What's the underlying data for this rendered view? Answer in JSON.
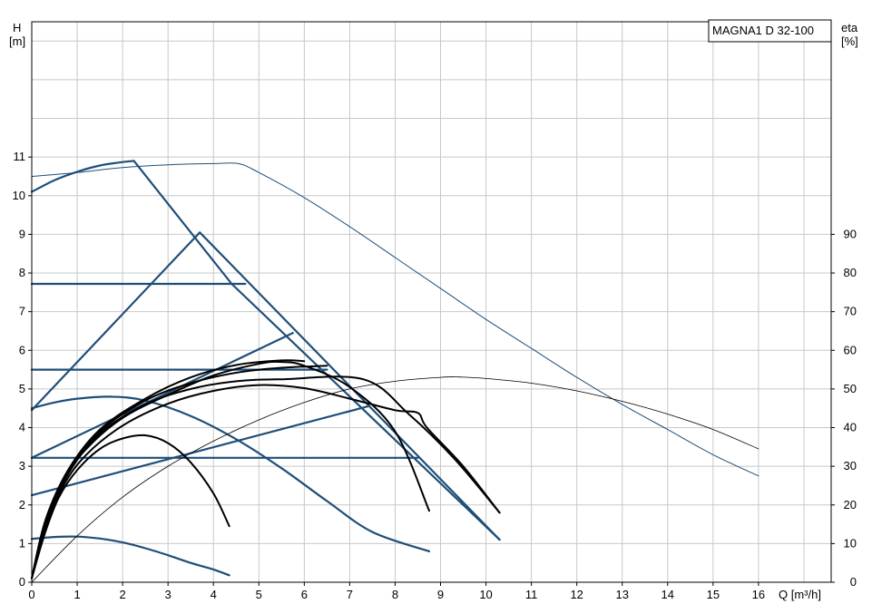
{
  "chart_data": {
    "type": "line",
    "title": "MAGNA1 D 32-100",
    "xlabel": "Q [m³/h]",
    "ylabel_unit": "[m]",
    "ylabel": "H",
    "y2label": "eta",
    "y2label_unit": "[%]",
    "xlim": [
      0,
      17.6
    ],
    "ylim": [
      0,
      14.5
    ],
    "y2lim": [
      0,
      145
    ],
    "x_ticks": [
      0,
      1,
      2,
      3,
      4,
      5,
      6,
      7,
      8,
      9,
      10,
      11,
      12,
      13,
      14,
      15,
      16
    ],
    "y_ticks": [
      0,
      1,
      2,
      3,
      4,
      5,
      6,
      7,
      8,
      9,
      10,
      11
    ],
    "y2_ticks": [
      0,
      10,
      20,
      30,
      40,
      50,
      60,
      70,
      80,
      90
    ],
    "grid": true,
    "colors": {
      "blue": "#1f4e79",
      "black": "#000000",
      "grid": "#c8c8c8"
    },
    "series": [
      {
        "color": "#1f4e79",
        "width": 2.2,
        "points": [
          [
            0,
            10.1
          ],
          [
            0.5,
            10.4
          ],
          [
            1,
            10.62
          ],
          [
            1.5,
            10.78
          ],
          [
            2,
            10.87
          ],
          [
            2.25,
            10.9
          ],
          [
            4.4,
            7.72
          ],
          [
            10.3,
            1.1
          ]
        ]
      },
      {
        "color": "#1f4e79",
        "width": 2.2,
        "points": [
          [
            0,
            7.72
          ],
          [
            4.7,
            7.72
          ]
        ]
      },
      {
        "color": "#1f4e79",
        "width": 2.2,
        "points": [
          [
            0,
            4.45
          ],
          [
            3.7,
            9.05
          ],
          [
            10.3,
            1.1
          ]
        ]
      },
      {
        "color": "#1f4e79",
        "width": 2.2,
        "points": [
          [
            0,
            5.5
          ],
          [
            6.5,
            5.5
          ]
        ]
      },
      {
        "color": "#1f4e79",
        "width": 2.2,
        "points": [
          [
            0,
            3.22
          ],
          [
            5.75,
            6.45
          ]
        ]
      },
      {
        "color": "#1f4e79",
        "width": 2.2,
        "points": [
          [
            0,
            3.22
          ],
          [
            8.5,
            3.22
          ]
        ]
      },
      {
        "color": "#1f4e79",
        "width": 2.2,
        "points": [
          [
            0,
            2.25
          ],
          [
            7.4,
            4.55
          ]
        ]
      },
      {
        "color": "#1f4e79",
        "width": 2.2,
        "points": [
          [
            0,
            4.5
          ],
          [
            0.5,
            4.65
          ],
          [
            1,
            4.75
          ],
          [
            1.75,
            4.8
          ],
          [
            2.5,
            4.7
          ],
          [
            3.5,
            4.3
          ],
          [
            4.5,
            3.7
          ],
          [
            5.5,
            2.95
          ],
          [
            6.5,
            2.1
          ],
          [
            7.5,
            1.3
          ],
          [
            8.75,
            0.8
          ]
        ]
      },
      {
        "color": "#1f4e79",
        "width": 2.2,
        "points": [
          [
            0,
            1.12
          ],
          [
            0.5,
            1.17
          ],
          [
            1,
            1.18
          ],
          [
            1.5,
            1.13
          ],
          [
            2,
            1.03
          ],
          [
            2.5,
            0.88
          ],
          [
            3,
            0.7
          ],
          [
            3.5,
            0.5
          ],
          [
            4,
            0.33
          ],
          [
            4.35,
            0.18
          ]
        ]
      },
      {
        "color": "#000000",
        "width": 2.0,
        "points": [
          [
            0,
            0.1
          ],
          [
            0.3,
            1.3
          ],
          [
            0.6,
            2.2
          ],
          [
            1,
            2.9
          ],
          [
            1.5,
            3.45
          ],
          [
            2,
            3.72
          ],
          [
            2.5,
            3.8
          ],
          [
            3,
            3.6
          ],
          [
            3.5,
            3.1
          ],
          [
            4,
            2.3
          ],
          [
            4.35,
            1.45
          ]
        ]
      },
      {
        "color": "#000000",
        "width": 2.0,
        "points": [
          [
            0,
            0.1
          ],
          [
            0.3,
            1.4
          ],
          [
            0.7,
            2.5
          ],
          [
            1.2,
            3.3
          ],
          [
            2,
            4.05
          ],
          [
            3,
            4.62
          ],
          [
            4,
            4.95
          ],
          [
            5,
            5.1
          ],
          [
            6,
            5.02
          ],
          [
            7,
            4.75
          ],
          [
            8,
            4.45
          ],
          [
            8.5,
            4.38
          ],
          [
            8.7,
            4.0
          ],
          [
            9.5,
            3.0
          ],
          [
            10.3,
            1.8
          ]
        ]
      },
      {
        "color": "#000000",
        "width": 2.0,
        "points": [
          [
            0,
            0.1
          ],
          [
            0.3,
            1.5
          ],
          [
            0.7,
            2.65
          ],
          [
            1.2,
            3.45
          ],
          [
            2,
            4.25
          ],
          [
            3,
            4.85
          ],
          [
            4,
            5.35
          ],
          [
            5,
            5.65
          ],
          [
            5.5,
            5.7
          ],
          [
            6,
            5.6
          ],
          [
            7,
            5.05
          ],
          [
            8,
            3.9
          ],
          [
            8.75,
            1.85
          ]
        ]
      },
      {
        "color": "#000000",
        "width": 2.0,
        "points": [
          [
            0,
            0.1
          ],
          [
            0.3,
            1.5
          ],
          [
            0.8,
            2.8
          ],
          [
            1.5,
            3.85
          ],
          [
            2.5,
            4.6
          ],
          [
            3.5,
            5.0
          ],
          [
            4.5,
            5.2
          ],
          [
            5.5,
            5.25
          ],
          [
            7.3,
            5.25
          ],
          [
            8.3,
            4.35
          ],
          [
            9.3,
            3.2
          ],
          [
            10.3,
            1.8
          ]
        ]
      },
      {
        "color": "#000000",
        "width": 2.0,
        "points": [
          [
            0,
            0.1
          ],
          [
            0.3,
            1.55
          ],
          [
            0.8,
            2.85
          ],
          [
            1.5,
            3.9
          ],
          [
            2.5,
            4.7
          ],
          [
            3.5,
            5.15
          ],
          [
            4.5,
            5.42
          ],
          [
            5.5,
            5.55
          ],
          [
            6.5,
            5.6
          ]
        ]
      },
      {
        "color": "#000000",
        "width": 2.0,
        "points": [
          [
            0,
            0.1
          ],
          [
            0.3,
            1.6
          ],
          [
            0.8,
            2.9
          ],
          [
            1.5,
            3.95
          ],
          [
            2.5,
            4.75
          ],
          [
            3.5,
            5.3
          ],
          [
            4.5,
            5.62
          ],
          [
            5.5,
            5.74
          ],
          [
            6,
            5.72
          ]
        ]
      },
      {
        "color": "#1f4e79",
        "width": 1.0,
        "axis": "right",
        "points": [
          [
            0,
            105
          ],
          [
            1,
            106
          ],
          [
            2,
            107.3
          ],
          [
            3,
            108
          ],
          [
            4,
            108.3
          ],
          [
            4.55,
            108.3
          ],
          [
            5,
            106
          ],
          [
            6,
            99.5
          ],
          [
            7,
            92
          ],
          [
            8,
            84
          ],
          [
            9,
            76
          ],
          [
            10,
            68
          ],
          [
            11,
            60.5
          ],
          [
            12,
            53
          ],
          [
            13,
            46
          ],
          [
            14,
            39.5
          ],
          [
            15,
            33
          ],
          [
            16,
            27.5
          ]
        ]
      },
      {
        "color": "#000000",
        "width": 0.8,
        "axis": "right",
        "points": [
          [
            0,
            0
          ],
          [
            1,
            12
          ],
          [
            2,
            22
          ],
          [
            3,
            30
          ],
          [
            4,
            36.5
          ],
          [
            5,
            42
          ],
          [
            6,
            46.5
          ],
          [
            7,
            50
          ],
          [
            8,
            52
          ],
          [
            9,
            53
          ],
          [
            9.4,
            53.1
          ],
          [
            10,
            52.7
          ],
          [
            11,
            51.5
          ],
          [
            12,
            49.5
          ],
          [
            13,
            46.8
          ],
          [
            14,
            43.5
          ],
          [
            15,
            39.5
          ],
          [
            16,
            34.5
          ]
        ]
      }
    ]
  }
}
